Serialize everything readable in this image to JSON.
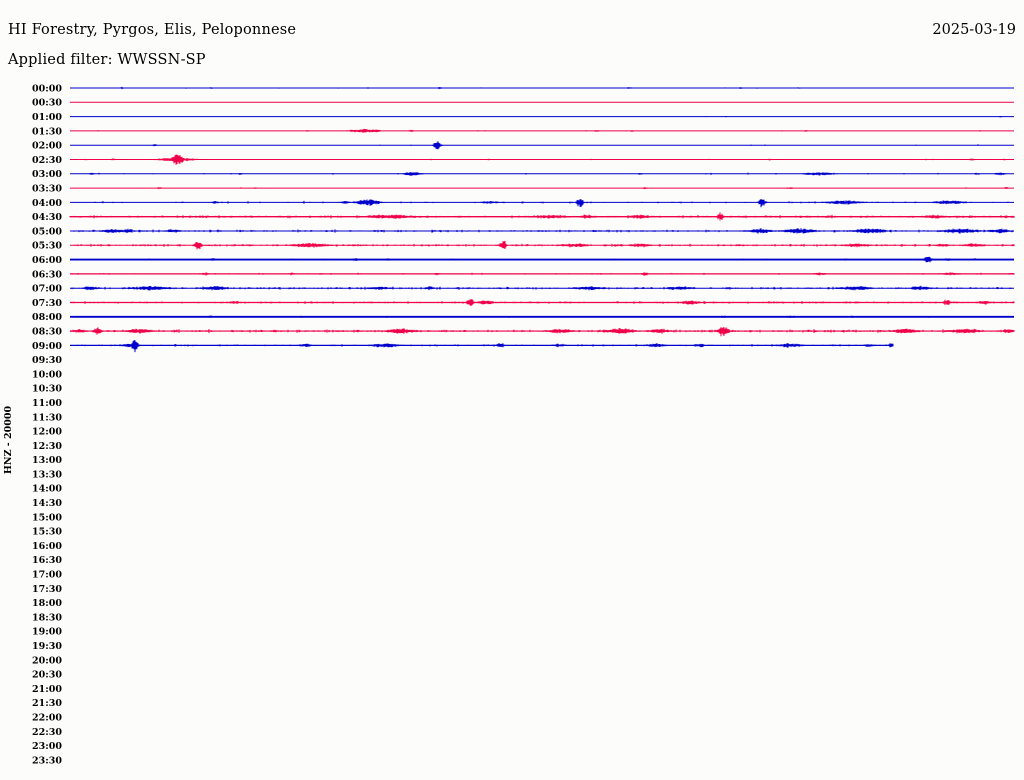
{
  "header": {
    "title": "HI Forestry, Pyrgos, Elis, Peloponnese",
    "date": "2025-03-19",
    "filter_label": "Applied filter: WWSSN-SP"
  },
  "colors": {
    "blue": "#0000cc",
    "red": "#ef0048",
    "text": "#000000",
    "background": "#fcfcfb"
  },
  "chart_data": {
    "type": "line",
    "subtype": "helicorder-seismogram",
    "title": "HI Forestry, Pyrgos, Elis, Peloponnese",
    "date": "2025-03-19",
    "filter": "WWSSN-SP",
    "station_scale_label": "HNZ - 20000",
    "time_step_minutes": 30,
    "x_axis": "minutes 0-30 per row, no tick labels shown",
    "grid": false,
    "legend": "none",
    "rows": [
      {
        "time": "00:00",
        "color": "blue",
        "active": true,
        "lw": 1,
        "den": 0.04,
        "amp": 0.9,
        "events": [
          [
            0.055,
            0.9,
            1.5
          ],
          [
            0.15,
            1.0,
            2
          ],
          [
            0.392,
            1.1,
            2
          ],
          [
            0.593,
            0.9,
            2
          ],
          [
            0.71,
            0.9,
            2
          ],
          [
            0.773,
            0.9,
            2
          ]
        ]
      },
      {
        "time": "00:30",
        "color": "red",
        "active": true,
        "lw": 1,
        "den": 0.012,
        "amp": 0.7,
        "events": []
      },
      {
        "time": "01:00",
        "color": "blue",
        "active": true,
        "lw": 1,
        "den": 0.012,
        "amp": 0.7,
        "events": [
          [
            0.694,
            0.7,
            2
          ],
          [
            0.985,
            0.8,
            2
          ]
        ]
      },
      {
        "time": "01:30",
        "color": "red",
        "active": true,
        "lw": 1,
        "den": 0.03,
        "amp": 0.9,
        "events": [
          [
            0.252,
            0.8,
            2
          ],
          [
            0.3125,
            1.8,
            12
          ],
          [
            0.325,
            1.5,
            4
          ],
          [
            0.362,
            1.0,
            3
          ],
          [
            0.558,
            0.9,
            3
          ],
          [
            0.595,
            0.9,
            2
          ],
          [
            0.78,
            0.8,
            2
          ]
        ]
      },
      {
        "time": "02:00",
        "color": "blue",
        "active": true,
        "lw": 1,
        "den": 0.02,
        "amp": 0.9,
        "events": [
          [
            0.09,
            1.0,
            2
          ],
          [
            0.328,
            0.8,
            2
          ],
          [
            0.389,
            4.5,
            2.5
          ]
        ]
      },
      {
        "time": "02:30",
        "color": "red",
        "active": true,
        "lw": 1,
        "den": 0.04,
        "amp": 0.9,
        "events": [
          [
            0.017,
            0.9,
            2
          ],
          [
            0.046,
            0.9,
            2
          ],
          [
            0.114,
            2.0,
            14
          ],
          [
            0.114,
            4.3,
            5
          ],
          [
            0.443,
            0.9,
            2
          ],
          [
            0.741,
            0.9,
            2
          ],
          [
            0.956,
            1.2,
            3
          ],
          [
            0.99,
            1.0,
            2
          ]
        ]
      },
      {
        "time": "03:00",
        "color": "blue",
        "active": true,
        "lw": 1,
        "den": 0.06,
        "amp": 1.1,
        "events": [
          [
            0.023,
            1.0,
            2
          ],
          [
            0.18,
            1.0,
            2
          ],
          [
            0.363,
            1.8,
            7
          ],
          [
            0.604,
            1.0,
            2
          ],
          [
            0.794,
            1.6,
            12
          ],
          [
            0.961,
            1.0,
            3
          ],
          [
            0.985,
            1.3,
            5
          ]
        ]
      },
      {
        "time": "03:30",
        "color": "red",
        "active": true,
        "lw": 1,
        "den": 0.02,
        "amp": 0.8,
        "events": [
          [
            0.095,
            0.9,
            2
          ],
          [
            0.196,
            0.9,
            2
          ],
          [
            0.609,
            1.1,
            2
          ],
          [
            0.763,
            1.0,
            3
          ],
          [
            0.992,
            0.9,
            2
          ]
        ]
      },
      {
        "time": "04:00",
        "color": "blue",
        "active": true,
        "lw": 1,
        "den": 0.14,
        "amp": 1.3,
        "events": [
          [
            0.154,
            1.2,
            3
          ],
          [
            0.291,
            1.5,
            4
          ],
          [
            0.316,
            2.8,
            9
          ],
          [
            0.445,
            1.3,
            8
          ],
          [
            0.54,
            4.6,
            2.5
          ],
          [
            0.733,
            4.3,
            2.5
          ],
          [
            0.821,
            1.8,
            15
          ],
          [
            0.932,
            1.8,
            12
          ]
        ]
      },
      {
        "time": "04:30",
        "color": "red",
        "active": true,
        "lw": 1.3,
        "den": 0.5,
        "amp": 1.6,
        "events": [
          [
            0.339,
            2.0,
            20
          ],
          [
            0.508,
            1.8,
            15
          ],
          [
            0.548,
            2.0,
            5
          ],
          [
            0.604,
            1.8,
            10
          ],
          [
            0.689,
            3.8,
            2.5
          ],
          [
            0.916,
            1.8,
            10
          ]
        ]
      },
      {
        "time": "05:00",
        "color": "blue",
        "active": true,
        "lw": 1,
        "den": 0.45,
        "amp": 1.5,
        "events": [
          [
            0.044,
            2.0,
            8
          ],
          [
            0.061,
            2.0,
            5
          ],
          [
            0.109,
            1.8,
            6
          ],
          [
            0.731,
            2.2,
            10
          ],
          [
            0.773,
            2.5,
            12
          ],
          [
            0.847,
            2.5,
            12
          ],
          [
            0.943,
            2.2,
            15
          ],
          [
            0.985,
            2.0,
            8
          ]
        ]
      },
      {
        "time": "05:30",
        "color": "red",
        "active": true,
        "lw": 1,
        "den": 0.5,
        "amp": 1.5,
        "events": [
          [
            0.136,
            4.2,
            2.5
          ],
          [
            0.254,
            2.0,
            15
          ],
          [
            0.459,
            4.5,
            2.5
          ],
          [
            0.535,
            2.0,
            10
          ],
          [
            0.604,
            1.8,
            8
          ],
          [
            0.832,
            1.8,
            10
          ],
          [
            0.924,
            1.6,
            6
          ],
          [
            0.959,
            1.8,
            8
          ]
        ]
      },
      {
        "time": "06:00",
        "color": "blue",
        "active": true,
        "lw": 1.9,
        "den": 0.08,
        "amp": 1.0,
        "events": [
          [
            0.151,
            1.8,
            2.5
          ],
          [
            0.302,
            1.3,
            2.5
          ],
          [
            0.337,
            1.2,
            2
          ],
          [
            0.577,
            1.0,
            2
          ],
          [
            0.821,
            1.0,
            3
          ],
          [
            0.909,
            3.2,
            3
          ],
          [
            0.929,
            1.3,
            4
          ],
          [
            0.959,
            1.2,
            3
          ]
        ]
      },
      {
        "time": "06:30",
        "color": "red",
        "active": true,
        "lw": 1.2,
        "den": 0.22,
        "amp": 1.1,
        "events": [
          [
            0.143,
            1.4,
            4
          ],
          [
            0.235,
            1.2,
            3
          ],
          [
            0.389,
            1.3,
            3
          ],
          [
            0.609,
            1.9,
            2.5
          ],
          [
            0.794,
            1.4,
            5
          ],
          [
            0.932,
            1.4,
            8
          ],
          [
            0.998,
            1.2,
            3
          ]
        ]
      },
      {
        "time": "07:00",
        "color": "blue",
        "active": true,
        "lw": 1,
        "den": 0.5,
        "amp": 1.5,
        "events": [
          [
            0.021,
            1.8,
            6
          ],
          [
            0.085,
            2.0,
            15
          ],
          [
            0.154,
            2.0,
            10
          ],
          [
            0.328,
            1.8,
            8
          ],
          [
            0.381,
            1.8,
            4
          ],
          [
            0.551,
            1.8,
            12
          ],
          [
            0.646,
            1.8,
            10
          ],
          [
            0.832,
            2.0,
            12
          ],
          [
            0.901,
            2.0,
            8
          ]
        ]
      },
      {
        "time": "07:30",
        "color": "red",
        "active": true,
        "lw": 1.3,
        "den": 0.45,
        "amp": 1.4,
        "events": [
          [
            0.175,
            1.5,
            5
          ],
          [
            0.424,
            4.2,
            2.5
          ],
          [
            0.44,
            2.0,
            6
          ],
          [
            0.657,
            2.0,
            8
          ],
          [
            0.929,
            3.2,
            2.5
          ],
          [
            0.969,
            1.8,
            6
          ]
        ]
      },
      {
        "time": "08:00",
        "color": "blue",
        "active": true,
        "lw": 1.9,
        "den": 0.05,
        "amp": 0.9,
        "events": [
          [
            0.149,
            1.2,
            3
          ],
          [
            0.244,
            1.0,
            2
          ],
          [
            0.336,
            1.0,
            2
          ],
          [
            0.691,
            1.3,
            4
          ],
          [
            0.763,
            1.2,
            4
          ],
          [
            0.828,
            1.0,
            2
          ],
          [
            0.911,
            1.0,
            2
          ]
        ]
      },
      {
        "time": "08:30",
        "color": "red",
        "active": true,
        "lw": 1.1,
        "den": 0.55,
        "amp": 1.7,
        "events": [
          [
            0.011,
            2.0,
            5
          ],
          [
            0.029,
            3.8,
            3
          ],
          [
            0.074,
            2.2,
            10
          ],
          [
            0.35,
            2.2,
            12
          ],
          [
            0.519,
            2.2,
            10
          ],
          [
            0.583,
            2.4,
            12
          ],
          [
            0.625,
            2.2,
            8
          ],
          [
            0.692,
            4.8,
            4
          ],
          [
            0.885,
            2.4,
            10
          ],
          [
            0.948,
            2.4,
            12
          ],
          [
            0.994,
            2.2,
            5
          ]
        ]
      },
      {
        "time": "09:00",
        "color": "blue",
        "active": true,
        "lw": 1.2,
        "den": 0.3,
        "amp": 1.3,
        "end": 0.872,
        "events": [
          [
            0.064,
            2.5,
            6
          ],
          [
            0.069,
            6.3,
            2.5
          ],
          [
            0.249,
            1.6,
            5
          ],
          [
            0.334,
            2.0,
            12
          ],
          [
            0.456,
            2.2,
            3
          ],
          [
            0.519,
            1.5,
            6
          ],
          [
            0.62,
            2.0,
            8
          ],
          [
            0.667,
            1.8,
            4
          ],
          [
            0.763,
            2.0,
            10
          ],
          [
            0.847,
            1.5,
            5
          ],
          [
            0.87,
            2.2,
            2
          ]
        ]
      },
      {
        "time": "09:30",
        "color": "red",
        "active": false
      },
      {
        "time": "10:00",
        "color": "blue",
        "active": false
      },
      {
        "time": "10:30",
        "color": "red",
        "active": false
      },
      {
        "time": "11:00",
        "color": "blue",
        "active": false
      },
      {
        "time": "11:30",
        "color": "red",
        "active": false
      },
      {
        "time": "12:00",
        "color": "blue",
        "active": false
      },
      {
        "time": "12:30",
        "color": "red",
        "active": false
      },
      {
        "time": "13:00",
        "color": "blue",
        "active": false
      },
      {
        "time": "13:30",
        "color": "red",
        "active": false
      },
      {
        "time": "14:00",
        "color": "blue",
        "active": false
      },
      {
        "time": "14:30",
        "color": "red",
        "active": false
      },
      {
        "time": "15:00",
        "color": "blue",
        "active": false
      },
      {
        "time": "15:30",
        "color": "red",
        "active": false
      },
      {
        "time": "16:00",
        "color": "blue",
        "active": false
      },
      {
        "time": "16:30",
        "color": "red",
        "active": false
      },
      {
        "time": "17:00",
        "color": "blue",
        "active": false
      },
      {
        "time": "17:30",
        "color": "red",
        "active": false
      },
      {
        "time": "18:00",
        "color": "blue",
        "active": false
      },
      {
        "time": "18:30",
        "color": "red",
        "active": false
      },
      {
        "time": "19:00",
        "color": "blue",
        "active": false
      },
      {
        "time": "19:30",
        "color": "red",
        "active": false
      },
      {
        "time": "20:00",
        "color": "blue",
        "active": false
      },
      {
        "time": "20:30",
        "color": "red",
        "active": false
      },
      {
        "time": "21:00",
        "color": "blue",
        "active": false
      },
      {
        "time": "21:30",
        "color": "red",
        "active": false
      },
      {
        "time": "22:00",
        "color": "blue",
        "active": false
      },
      {
        "time": "22:30",
        "color": "red",
        "active": false
      },
      {
        "time": "23:00",
        "color": "blue",
        "active": false
      },
      {
        "time": "23:30",
        "color": "red",
        "active": false
      }
    ]
  }
}
